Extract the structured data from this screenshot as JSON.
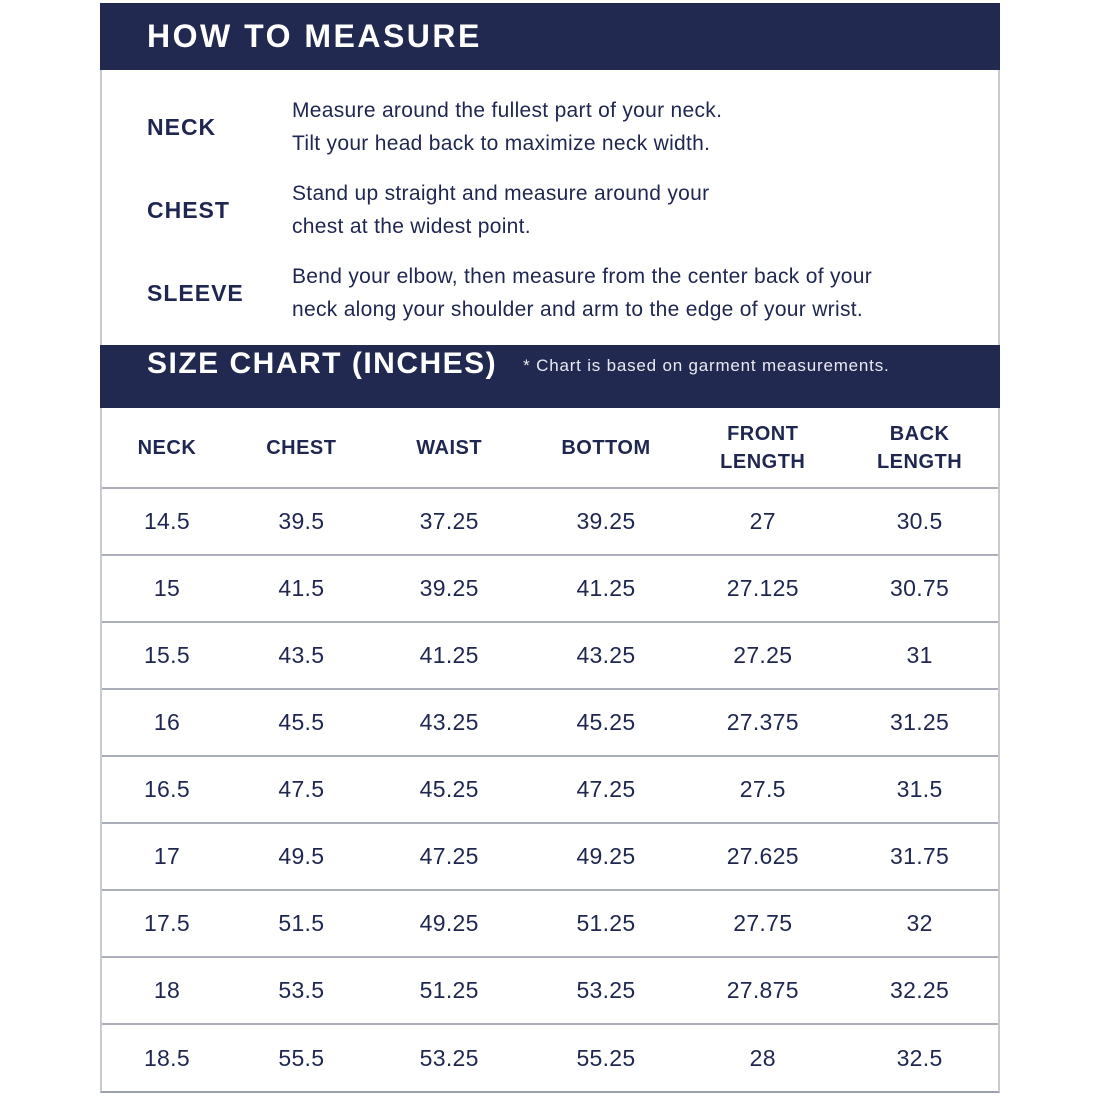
{
  "colors": {
    "banner_navy": "#222950",
    "text_navy": "#1f2650",
    "banner_text": "#ffffff"
  },
  "how_to_measure": {
    "title": "HOW TO MEASURE",
    "items": [
      {
        "label": "NECK",
        "line1": "Measure around the fullest part of your neck.",
        "line2": "Tilt your head back to maximize neck width."
      },
      {
        "label": "CHEST",
        "line1": "Stand up straight and measure around your",
        "line2": "chest at the widest point."
      },
      {
        "label": "SLEEVE",
        "line1": "Bend your elbow, then measure from the center back of your",
        "line2": "neck along your shoulder and arm to the edge of your wrist."
      }
    ]
  },
  "size_chart": {
    "title": "SIZE CHART (INCHES)",
    "note": "* Chart is based on garment measurements.",
    "columns": [
      "NECK",
      "CHEST",
      "WAIST",
      "BOTTOM",
      "FRONT LENGTH",
      "BACK LENGTH"
    ],
    "rows": [
      [
        "14.5",
        "39.5",
        "37.25",
        "39.25",
        "27",
        "30.5"
      ],
      [
        "15",
        "41.5",
        "39.25",
        "41.25",
        "27.125",
        "30.75"
      ],
      [
        "15.5",
        "43.5",
        "41.25",
        "43.25",
        "27.25",
        "31"
      ],
      [
        "16",
        "45.5",
        "43.25",
        "45.25",
        "27.375",
        "31.25"
      ],
      [
        "16.5",
        "47.5",
        "45.25",
        "47.25",
        "27.5",
        "31.5"
      ],
      [
        "17",
        "49.5",
        "47.25",
        "49.25",
        "27.625",
        "31.75"
      ],
      [
        "17.5",
        "51.5",
        "49.25",
        "51.25",
        "27.75",
        "32"
      ],
      [
        "18",
        "53.5",
        "51.25",
        "53.25",
        "27.875",
        "32.25"
      ],
      [
        "18.5",
        "55.5",
        "53.25",
        "55.25",
        "28",
        "32.5"
      ]
    ]
  }
}
